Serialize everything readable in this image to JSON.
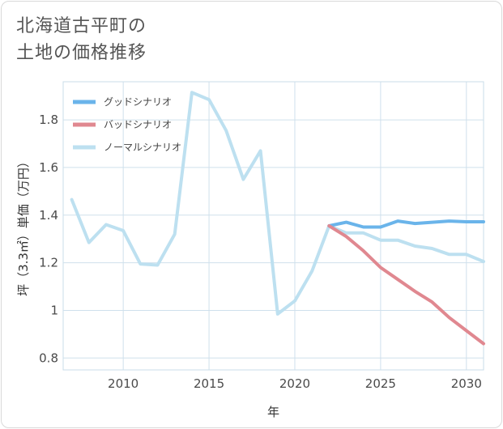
{
  "title_lines": [
    "北海道古平町の",
    "土地の価格推移"
  ],
  "chart_data": {
    "type": "line",
    "title": "北海道古平町の土地の価格推移",
    "xlabel": "年",
    "ylabel": "坪（3.3㎡）単価（万円）",
    "xlim": [
      2006.5,
      2031
    ],
    "ylim": [
      0.75,
      1.96
    ],
    "x_ticks": [
      2010,
      2015,
      2020,
      2025,
      2030
    ],
    "y_ticks": [
      0.8,
      1,
      1.2,
      1.4,
      1.6,
      1.8
    ],
    "y_tick_labels": [
      "0.8",
      "1",
      "1.2",
      "1.4",
      "1.6",
      "1.8"
    ],
    "legend_position": "top-left",
    "series": [
      {
        "name": "グッドシナリオ",
        "color": "#6ab4ea",
        "x": [
          2022,
          2023,
          2024,
          2025,
          2026,
          2027,
          2028,
          2029,
          2030,
          2031
        ],
        "values": [
          1.355,
          1.37,
          1.35,
          1.35,
          1.375,
          1.365,
          1.37,
          1.375,
          1.372,
          1.372
        ]
      },
      {
        "name": "バッドシナリオ",
        "color": "#e08890",
        "x": [
          2022,
          2023,
          2024,
          2025,
          2026,
          2027,
          2028,
          2029,
          2030,
          2031
        ],
        "values": [
          1.355,
          1.31,
          1.25,
          1.18,
          1.13,
          1.08,
          1.035,
          0.97,
          0.915,
          0.86
        ]
      },
      {
        "name": "ノーマルシナリオ",
        "color": "#bde0f0",
        "x": [
          2007,
          2008,
          2009,
          2010,
          2011,
          2012,
          2013,
          2014,
          2015,
          2016,
          2017,
          2018,
          2019,
          2020,
          2021,
          2022,
          2023,
          2024,
          2025,
          2026,
          2027,
          2028,
          2029,
          2030,
          2031
        ],
        "values": [
          1.465,
          1.285,
          1.36,
          1.335,
          1.195,
          1.19,
          1.32,
          1.915,
          1.885,
          1.755,
          1.55,
          1.67,
          0.985,
          1.04,
          1.165,
          1.355,
          1.325,
          1.325,
          1.295,
          1.295,
          1.27,
          1.26,
          1.235,
          1.235,
          1.205
        ]
      }
    ]
  }
}
